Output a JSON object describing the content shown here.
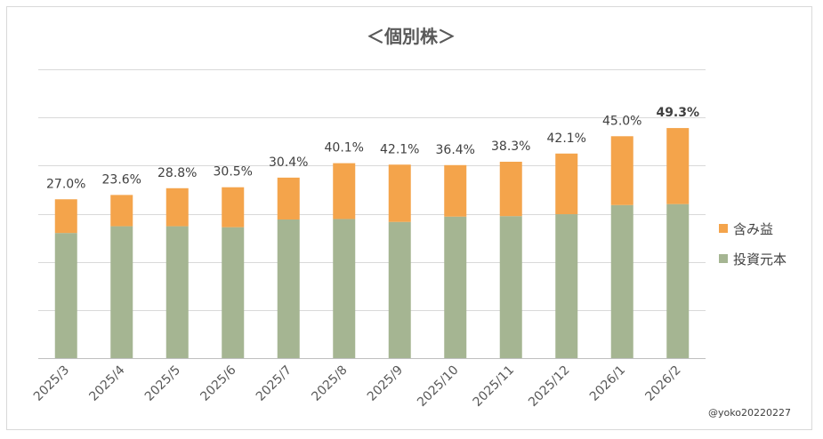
{
  "chart_data": {
    "type": "bar",
    "stacked": true,
    "title": "＜個別株＞",
    "categories": [
      "2025/3",
      "2025/4",
      "2025/5",
      "2025/6",
      "2025/7",
      "2025/8",
      "2025/9",
      "2025/10",
      "2025/11",
      "2025/12",
      "2026/1",
      "2026/2"
    ],
    "series": [
      {
        "name": "投資元本",
        "color": "#a5b592",
        "values": [
          26.0,
          27.4,
          27.4,
          27.2,
          28.8,
          28.9,
          28.3,
          29.4,
          29.5,
          29.9,
          31.8,
          32.0
        ]
      },
      {
        "name": "含み益",
        "color": "#f4a44b",
        "values": [
          7.0,
          6.5,
          7.9,
          8.3,
          8.7,
          11.6,
          11.9,
          10.7,
          11.3,
          12.6,
          14.3,
          15.8
        ]
      }
    ],
    "data_labels": [
      "27.0%",
      "23.6%",
      "28.8%",
      "30.5%",
      "30.4%",
      "40.1%",
      "42.1%",
      "36.4%",
      "38.3%",
      "42.1%",
      "45.0%",
      "49.3%"
    ],
    "bold_label_index": 11,
    "ylim": [
      0,
      60
    ],
    "y_gridlines": [
      0,
      10,
      20,
      30,
      40,
      50,
      60
    ],
    "y_tick_labels_visible": false,
    "legend_position": "right",
    "xlabel": "",
    "ylabel": ""
  },
  "credit": "@yoko20220227"
}
